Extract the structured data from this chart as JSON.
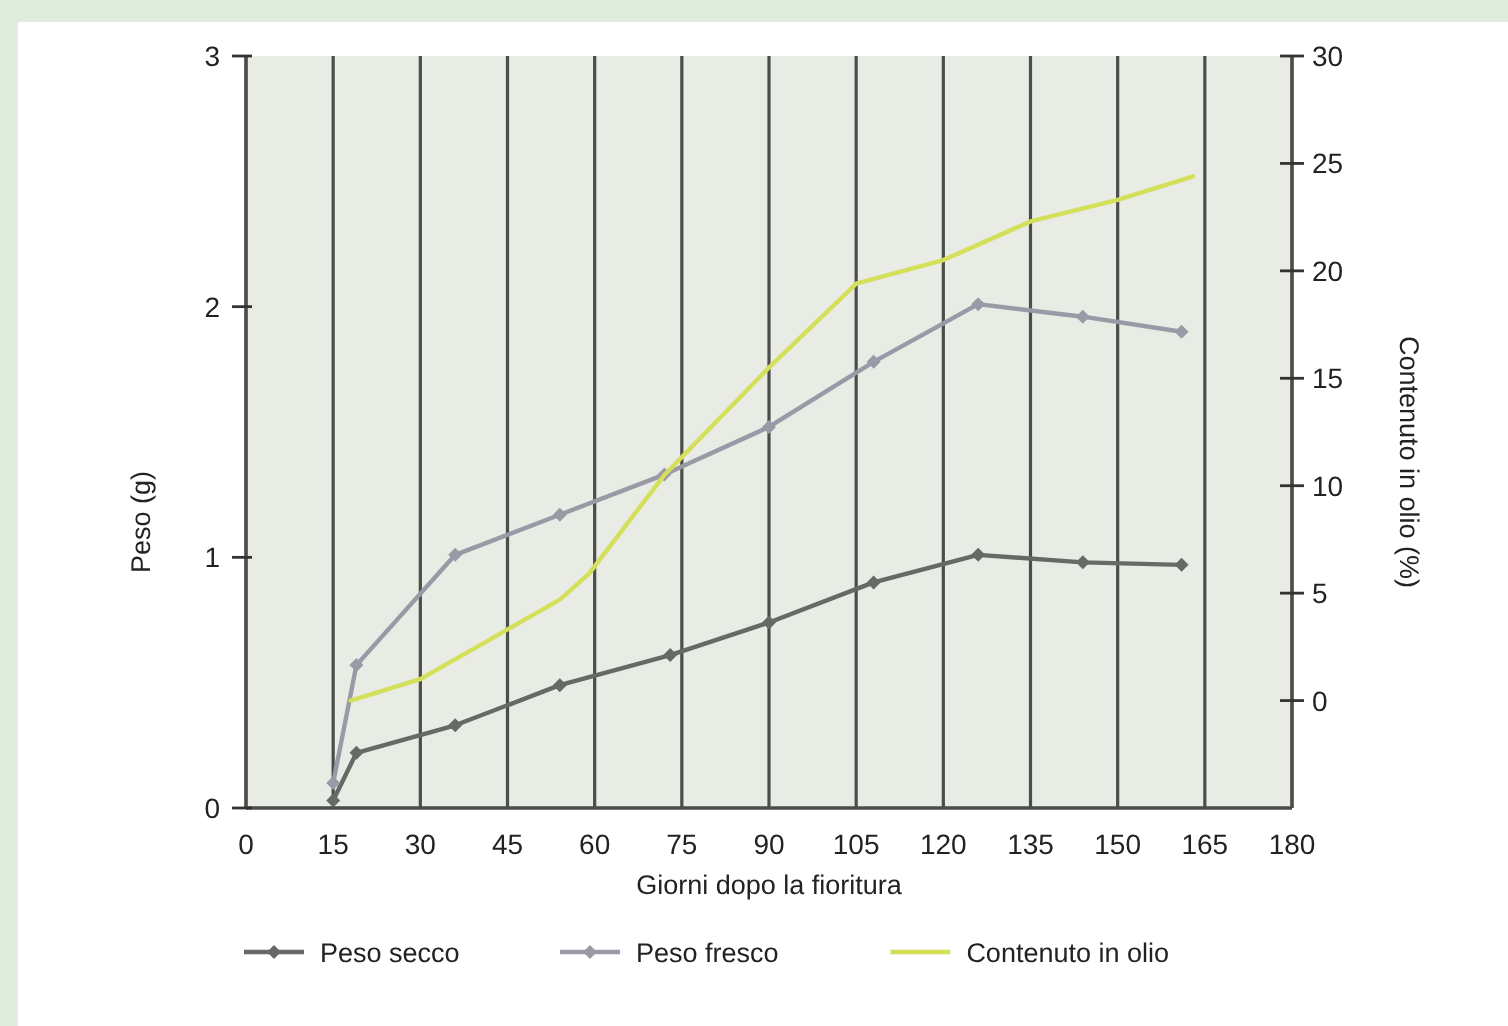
{
  "chart_data": {
    "type": "line",
    "xlabel": "Giorni dopo la fioritura",
    "ylabel": "Peso (g)",
    "y2label": "Contenuto in olio (%)",
    "xlim": [
      0,
      180
    ],
    "xticks": [
      0,
      15,
      30,
      45,
      60,
      75,
      90,
      105,
      120,
      135,
      150,
      165,
      180
    ],
    "ylim": [
      0,
      3
    ],
    "yticks": [
      0,
      1,
      2,
      3
    ],
    "y2lim": [
      -5,
      30
    ],
    "y2ticks": [
      0,
      5,
      10,
      15,
      20,
      25,
      30
    ],
    "grid": "x",
    "legend": "bottom",
    "marker": "diamond",
    "line_style": "solid",
    "series": [
      {
        "name": "Peso secco",
        "color": "#666a66",
        "x": [
          15,
          19,
          36,
          54,
          73,
          90,
          108,
          126,
          144,
          161
        ],
        "values": [
          0.03,
          0.22,
          0.33,
          0.49,
          0.61,
          0.74,
          0.9,
          1.01,
          0.98,
          0.97
        ]
      },
      {
        "name": "Peso fresco",
        "color": "#9a9aa6",
        "x": [
          15,
          19,
          36,
          54,
          72,
          90,
          108,
          126,
          144,
          161
        ],
        "values": [
          0.1,
          0.57,
          1.01,
          1.17,
          1.33,
          1.52,
          1.78,
          2.01,
          1.96,
          1.9
        ]
      },
      {
        "name": "Contenuto in olio",
        "color": "#d4df5a",
        "axis": "y2",
        "marker": "none",
        "x": [
          18,
          30,
          43,
          54,
          59,
          72,
          90,
          105,
          120,
          135,
          150,
          163
        ],
        "values": [
          0,
          1,
          3,
          4.7,
          5.9,
          10.5,
          15.5,
          19.4,
          20.5,
          22.3,
          23.3,
          24.4
        ]
      }
    ]
  }
}
